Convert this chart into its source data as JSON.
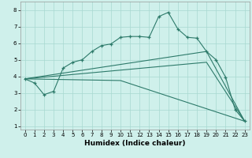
{
  "title": "",
  "xlabel": "Humidex (Indice chaleur)",
  "bg_color": "#cff0eb",
  "grid_color": "#a8d8d0",
  "line_color": "#2d7a6a",
  "xlim": [
    -0.5,
    23.5
  ],
  "ylim": [
    0.8,
    8.5
  ],
  "xticks": [
    0,
    1,
    2,
    3,
    4,
    5,
    6,
    7,
    8,
    9,
    10,
    11,
    12,
    13,
    14,
    15,
    16,
    17,
    18,
    19,
    20,
    21,
    22,
    23
  ],
  "yticks": [
    1,
    2,
    3,
    4,
    5,
    6,
    7,
    8
  ],
  "line1_x": [
    0,
    1,
    2,
    3,
    4,
    5,
    6,
    7,
    8,
    9,
    10,
    11,
    12,
    13,
    14,
    15,
    16,
    17,
    18,
    19,
    20,
    21,
    22,
    23
  ],
  "line1_y": [
    3.85,
    3.6,
    2.9,
    3.1,
    4.5,
    4.85,
    5.0,
    5.5,
    5.85,
    5.95,
    6.35,
    6.4,
    6.4,
    6.35,
    7.6,
    7.85,
    6.85,
    6.35,
    6.3,
    5.5,
    5.0,
    3.95,
    2.0,
    1.3
  ],
  "line2_x": [
    0,
    10,
    23
  ],
  "line2_y": [
    3.85,
    3.75,
    1.3
  ],
  "line3_x": [
    0,
    19,
    23
  ],
  "line3_y": [
    3.85,
    5.5,
    1.3
  ],
  "line4_x": [
    0,
    19,
    23
  ],
  "line4_y": [
    3.85,
    4.85,
    1.3
  ]
}
